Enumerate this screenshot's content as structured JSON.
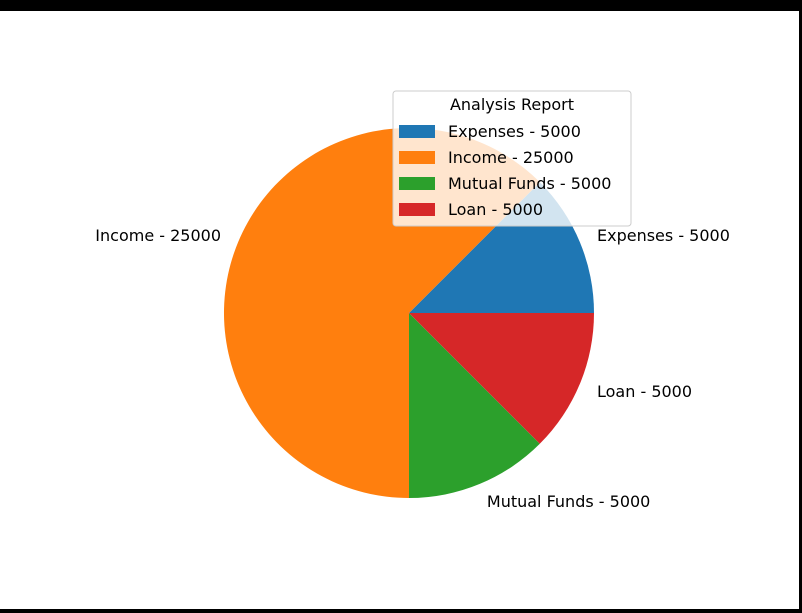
{
  "chart_data": {
    "type": "pie",
    "categories": [
      "Expenses - 5000",
      "Income - 25000",
      "Mutual Funds - 5000",
      "Loan - 5000"
    ],
    "values": [
      5000,
      25000,
      5000,
      5000
    ],
    "colors": [
      "#1f77b4",
      "#ff7f0e",
      "#2ca02c",
      "#d62728"
    ],
    "start_angle_deg": 0,
    "direction": "counterclockwise",
    "legend": {
      "title": "Analysis Report",
      "placement": "upper-right",
      "entries": [
        "Expenses - 5000",
        "Income - 25000",
        "Mutual Funds - 5000",
        "Loan - 5000"
      ]
    }
  }
}
